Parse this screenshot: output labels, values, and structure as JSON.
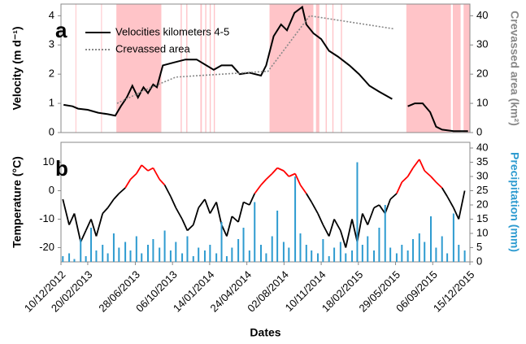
{
  "chart_data": [
    {
      "type": "line",
      "label": "a",
      "ylabel": "Velocity (m d⁻¹)",
      "y2label": "Crevassed area (km²)",
      "xlim": [
        "2012-12-10",
        "2015-12-15"
      ],
      "ylim": [
        0,
        4.4
      ],
      "yticks": [
        0,
        1,
        2,
        3,
        4
      ],
      "y2lim": [
        0,
        44
      ],
      "y2ticks": [
        0,
        10,
        20,
        30,
        40
      ],
      "shaded_periods": {
        "color": "#ffc4c8",
        "periods": [
          [
            "2013-01-18",
            "2013-01-20"
          ],
          [
            "2013-03-28",
            "2013-03-30"
          ],
          [
            "2013-05-08",
            "2013-09-06"
          ],
          [
            "2013-10-28",
            "2013-10-31"
          ],
          [
            "2013-11-12",
            "2013-11-15"
          ],
          [
            "2013-12-20",
            "2013-12-24"
          ],
          [
            "2014-01-02",
            "2014-01-05"
          ],
          [
            "2014-01-14",
            "2014-01-17"
          ],
          [
            "2014-01-25",
            "2014-01-28"
          ],
          [
            "2014-06-24",
            "2014-10-20"
          ],
          [
            "2014-10-27",
            "2014-11-05"
          ],
          [
            "2014-11-22",
            "2014-11-25"
          ],
          [
            "2014-12-10",
            "2014-12-13"
          ],
          [
            "2015-01-02",
            "2015-01-05"
          ],
          [
            "2015-06-27",
            "2015-10-25"
          ],
          [
            "2015-10-30",
            "2015-11-20"
          ],
          [
            "2015-11-28",
            "2015-12-15"
          ]
        ]
      },
      "legend": "upper left",
      "series": [
        {
          "name": "Velocities kilometers 4-5",
          "color": "#000000",
          "dash": false,
          "x": [
            "2012-12-17",
            "2013-01-10",
            "2013-01-25",
            "2013-02-20",
            "2013-03-20",
            "2013-04-15",
            "2013-05-05",
            "2013-05-20",
            "2013-06-05",
            "2013-06-20",
            "2013-07-05",
            "2013-07-20",
            "2013-08-01",
            "2013-08-15",
            "2013-08-25",
            "2013-09-10",
            "2013-10-10",
            "2013-11-10",
            "2013-12-10",
            "2014-01-05",
            "2014-01-25",
            "2014-02-15",
            "2014-03-15",
            "2014-04-05",
            "2014-05-01",
            "2014-06-01",
            "2014-06-15",
            "2014-07-05",
            "2014-07-25",
            "2014-08-10",
            "2014-08-30",
            "2014-09-20",
            "2014-10-01",
            "2014-10-20",
            "2014-11-10",
            "2014-12-01",
            "2014-12-25",
            "2015-01-25",
            "2015-02-20",
            "2015-03-20",
            "2015-04-15",
            "2015-05-20",
            "2015-06-10",
            "2015-07-01",
            "2015-07-20",
            "2015-08-10",
            "2015-08-30",
            "2015-09-15",
            "2015-10-01",
            "2015-11-01",
            "2015-12-10"
          ],
          "values": [
            0.95,
            0.9,
            0.82,
            0.78,
            0.68,
            0.63,
            0.58,
            0.9,
            1.2,
            1.6,
            1.2,
            1.55,
            1.35,
            1.65,
            1.55,
            2.3,
            2.4,
            2.5,
            2.5,
            2.3,
            2.15,
            2.3,
            2.3,
            2.0,
            2.05,
            1.95,
            2.3,
            3.3,
            3.7,
            3.5,
            4.1,
            4.3,
            3.7,
            3.4,
            3.2,
            2.8,
            2.6,
            2.3,
            2.0,
            1.6,
            1.4,
            1.15,
            null,
            0.9,
            1.0,
            1.0,
            0.7,
            0.2,
            0.1,
            0.05,
            0.05
          ]
        },
        {
          "name": "Crevassed area",
          "color": "#888888",
          "dash": true,
          "axis": "y2",
          "x": [
            "2013-05-10",
            "2013-08-01",
            "2013-10-15",
            "2014-06-20",
            "2014-10-10",
            "2015-05-25"
          ],
          "values": [
            10,
            15,
            19,
            21,
            40,
            35.5
          ]
        }
      ]
    },
    {
      "type": "line",
      "label": "b",
      "ylabel": "Temperature (°C)",
      "y2label": "Precipitation (mm)",
      "xlabel": "Dates",
      "xlim": [
        "2012-12-10",
        "2015-12-15"
      ],
      "xticks": [
        {
          "value": "2012-12-10",
          "label": "10/12/2012"
        },
        {
          "value": "2013-02-20",
          "label": "20/02/2013"
        },
        {
          "value": "2013-06-28",
          "label": "28/06/2013"
        },
        {
          "value": "2013-10-06",
          "label": "06/10/2013"
        },
        {
          "value": "2014-01-14",
          "label": "14/01/2014"
        },
        {
          "value": "2014-04-24",
          "label": "24/04/2014"
        },
        {
          "value": "2014-08-02",
          "label": "02/08/2014"
        },
        {
          "value": "2014-11-10",
          "label": "10/11/2014"
        },
        {
          "value": "2015-02-18",
          "label": "18/02/2015"
        },
        {
          "value": "2015-05-29",
          "label": "29/05/2015"
        },
        {
          "value": "2015-09-06",
          "label": "06/09/2015"
        },
        {
          "value": "2015-12-15",
          "label": "15/12/2015"
        }
      ],
      "ylim": [
        -25,
        17
      ],
      "yticks": [
        -20,
        -10,
        0,
        10
      ],
      "y2lim": [
        0,
        42
      ],
      "y2ticks": [
        0,
        5,
        10,
        15,
        20,
        25,
        30,
        35,
        40
      ],
      "x": [
        "2012-12-15",
        "2013-01-01",
        "2013-01-15",
        "2013-02-01",
        "2013-02-15",
        "2013-03-01",
        "2013-03-15",
        "2013-04-01",
        "2013-04-15",
        "2013-05-01",
        "2013-05-15",
        "2013-06-01",
        "2013-06-15",
        "2013-07-01",
        "2013-07-15",
        "2013-08-01",
        "2013-08-15",
        "2013-09-01",
        "2013-09-15",
        "2013-10-01",
        "2013-10-15",
        "2013-11-01",
        "2013-11-15",
        "2013-12-01",
        "2013-12-15",
        "2014-01-01",
        "2014-01-15",
        "2014-02-01",
        "2014-02-15",
        "2014-03-01",
        "2014-03-15",
        "2014-04-01",
        "2014-04-15",
        "2014-05-01",
        "2014-05-15",
        "2014-06-01",
        "2014-06-15",
        "2014-07-01",
        "2014-07-15",
        "2014-08-01",
        "2014-08-15",
        "2014-09-01",
        "2014-09-15",
        "2014-10-01",
        "2014-10-15",
        "2014-11-01",
        "2014-11-15",
        "2014-12-01",
        "2014-12-15",
        "2015-01-01",
        "2015-01-15",
        "2015-02-01",
        "2015-02-15",
        "2015-03-01",
        "2015-03-15",
        "2015-04-01",
        "2015-04-15",
        "2015-05-01",
        "2015-05-15",
        "2015-06-01",
        "2015-06-15",
        "2015-07-01",
        "2015-07-15",
        "2015-08-01",
        "2015-08-15",
        "2015-09-01",
        "2015-09-15",
        "2015-10-01",
        "2015-10-15",
        "2015-11-01",
        "2015-11-15",
        "2015-12-01"
      ],
      "series": [
        {
          "name": "Temperature",
          "kind": "line",
          "color": "#000000",
          "above_color": "#ff0000",
          "threshold": 0,
          "values": [
            -3,
            -12,
            -8,
            -18,
            -14,
            -10,
            -16,
            -8,
            -6,
            -3,
            -1,
            1,
            4,
            6,
            9,
            7,
            8,
            4,
            2,
            -2,
            -6,
            -10,
            -14,
            -12,
            -6,
            -3,
            -8,
            -4,
            -12,
            -16,
            -9,
            -11,
            -4,
            -5,
            -1,
            2,
            4,
            6,
            8,
            7,
            5,
            6,
            2,
            -1,
            -4,
            -8,
            -12,
            -16,
            -10,
            -14,
            -20,
            -10,
            -18,
            -8,
            -12,
            -6,
            -5,
            -8,
            -3,
            -1,
            3,
            5,
            8,
            11,
            7,
            5,
            3,
            1,
            -2,
            -6,
            -10,
            0
          ]
        },
        {
          "name": "Precipitation",
          "kind": "bar",
          "color": "#2e9bd0",
          "axis": "y2",
          "values": [
            2,
            3,
            1,
            8,
            2,
            12,
            4,
            6,
            3,
            10,
            5,
            7,
            4,
            9,
            3,
            6,
            8,
            5,
            11,
            4,
            7,
            3,
            9,
            2,
            5,
            4,
            6,
            3,
            14,
            2,
            5,
            8,
            12,
            4,
            21,
            6,
            3,
            9,
            18,
            7,
            5,
            30,
            10,
            6,
            4,
            3,
            8,
            2,
            5,
            7,
            3,
            4,
            35,
            6,
            9,
            4,
            12,
            20,
            5,
            3,
            6,
            4,
            8,
            10,
            7,
            16,
            5,
            9,
            3,
            17,
            6,
            4
          ]
        }
      ]
    }
  ]
}
